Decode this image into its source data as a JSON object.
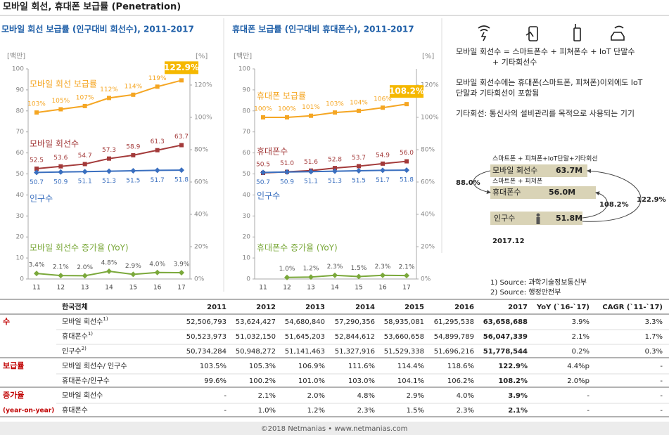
{
  "title": "모바일 회선, 휴대폰 보급률 (Penetration)",
  "chart_data": [
    {
      "type": "line",
      "title": "모바일 회선 보급률 (인구대비 회선수), 2011-2017",
      "ylabel": "[백만]",
      "y2label": "[%]",
      "categories": [
        "11",
        "12",
        "13",
        "14",
        "15",
        "16",
        "17"
      ],
      "ylim": [
        0,
        100
      ],
      "yticks": [
        0,
        10,
        20,
        30,
        40,
        50,
        60,
        70,
        80,
        90,
        100
      ],
      "y2lim": [
        0,
        130
      ],
      "y2ticks": [
        {
          "value": 0,
          "label": "0%"
        },
        {
          "value": 20,
          "label": "20%"
        },
        {
          "value": 40,
          "label": "40%"
        },
        {
          "value": 60,
          "label": "60%"
        },
        {
          "value": 80,
          "label": "80%"
        },
        {
          "value": 100,
          "label": "100%"
        },
        {
          "value": 120,
          "label": "120%"
        }
      ],
      "series": [
        {
          "name": "모바일 회선 보급률",
          "color": "#f5a623",
          "axis": "y2",
          "values": [
            103,
            105,
            107,
            112,
            114,
            119,
            122.9
          ],
          "value_labels": [
            "103%",
            "105%",
            "107%",
            "112%",
            "114%",
            "119%",
            "122.9%"
          ]
        },
        {
          "name": "모바일 회선수",
          "color": "#a33a3a",
          "axis": "y",
          "values": [
            52.5,
            53.6,
            54.7,
            57.3,
            58.9,
            61.3,
            63.7
          ]
        },
        {
          "name": "인구수",
          "color": "#3a6fbf",
          "axis": "y",
          "values": [
            50.7,
            50.9,
            51.1,
            51.3,
            51.5,
            51.7,
            51.8
          ]
        },
        {
          "name": "모바일 회선수 증가율 (YoY)",
          "color": "#7aa83a",
          "axis": "y2",
          "values": [
            3.4,
            2.1,
            2.0,
            4.8,
            2.9,
            4.0,
            3.9
          ],
          "value_labels": [
            "3.4%",
            "2.1%",
            "2.0%",
            "4.8%",
            "2.9%",
            "4.0%",
            "3.9%"
          ]
        }
      ]
    },
    {
      "type": "line",
      "title": "휴대폰 보급률 (인구대비 휴대폰수), 2011-2017",
      "ylabel": "[백만]",
      "y2label": "[%]",
      "categories": [
        "11",
        "12",
        "13",
        "14",
        "15",
        "16",
        "17"
      ],
      "ylim": [
        0,
        100
      ],
      "yticks": [
        0,
        10,
        20,
        30,
        40,
        50,
        60,
        70,
        80,
        90,
        100
      ],
      "y2lim": [
        0,
        130
      ],
      "y2ticks": [
        {
          "value": 0,
          "label": "0%"
        },
        {
          "value": 20,
          "label": "20%"
        },
        {
          "value": 40,
          "label": "40%"
        },
        {
          "value": 60,
          "label": "60%"
        },
        {
          "value": 80,
          "label": "80%"
        },
        {
          "value": 100,
          "label": "100%"
        },
        {
          "value": 120,
          "label": "120%"
        }
      ],
      "series": [
        {
          "name": "휴대폰 보급률",
          "color": "#f5a623",
          "axis": "y2",
          "values": [
            100,
            100,
            101,
            103,
            104,
            106,
            108.2
          ],
          "value_labels": [
            "100%",
            "100%",
            "101%",
            "103%",
            "104%",
            "106%",
            "108.2%"
          ]
        },
        {
          "name": "휴대폰수",
          "color": "#a33a3a",
          "axis": "y",
          "values": [
            50.5,
            51.0,
            51.6,
            52.8,
            53.7,
            54.9,
            56.0
          ],
          "value_labels": [
            "50.5",
            "51.0",
            "51.6",
            "52.8",
            "53.7",
            "54.9",
            "56.0"
          ]
        },
        {
          "name": "인구수",
          "color": "#3a6fbf",
          "axis": "y",
          "values": [
            50.7,
            50.9,
            51.1,
            51.3,
            51.5,
            51.7,
            51.8
          ]
        },
        {
          "name": "휴대폰수 증가율 (YoY)",
          "color": "#7aa83a",
          "axis": "y2",
          "values": [
            null,
            1.0,
            1.2,
            2.3,
            1.5,
            2.3,
            2.1
          ],
          "value_labels": [
            null,
            "1.0%",
            "1.2%",
            "2.3%",
            "1.5%",
            "2.3%",
            "2.1%"
          ]
        }
      ]
    }
  ],
  "notes": [
    "모바일 회선수 = 스마트폰수 + 피쳐폰수 + IoT 단말수",
    "+ 기타회선수",
    "모바일 회선수에는 휴대폰(스마트폰, 피쳐폰)이외에도 IoT",
    "단말과 기타회선이 포함됨",
    "기타회선: 통신사의 설비관리를 목적으로 사용되는 기기"
  ],
  "diagram": {
    "mobile_caption": "스마트폰 + 피쳐폰+IoT단말+기타회선",
    "phone_caption": "스마트폰 + 피쳐폰",
    "boxes": [
      {
        "label": "모바일 회선수",
        "value": "63.7M"
      },
      {
        "label": "휴대폰수",
        "value": "56.0M"
      },
      {
        "label": "인구수",
        "value": "51.8M"
      }
    ],
    "ratios": [
      "88.0%",
      "108.2%",
      "122.9%"
    ],
    "date": "2017.12"
  },
  "sources": [
    "1) Source: 과학기술정보통신부",
    "2) Source: 행정안전부"
  ],
  "table": {
    "header": [
      "한국전체",
      "2011",
      "2012",
      "2013",
      "2014",
      "2015",
      "2016",
      "2017",
      "YoY (`16-`17)",
      "CAGR (`11-`17)"
    ],
    "groups": [
      {
        "label": "수",
        "rows": [
          {
            "label": "모바일 회선수",
            "note": "1)",
            "cells": [
              "52,506,793",
              "53,624,427",
              "54,680,840",
              "57,290,356",
              "58,935,081",
              "61,295,538",
              "63,658,688",
              "3.9%",
              "3.3%"
            ]
          },
          {
            "label": "휴대폰수",
            "note": "1)",
            "cells": [
              "50,523,973",
              "51,032,150",
              "51,645,203",
              "52,844,612",
              "53,660,658",
              "54,899,789",
              "56,047,339",
              "2.1%",
              "1.7%"
            ]
          },
          {
            "label": "인구수",
            "note": "2)",
            "cells": [
              "50,734,284",
              "50,948,272",
              "51,141,463",
              "51,327,916",
              "51,529,338",
              "51,696,216",
              "51,778,544",
              "0.2%",
              "0.3%"
            ]
          }
        ]
      },
      {
        "label": "보급률",
        "rows": [
          {
            "label": "모바일 회선수/ 인구수",
            "cells": [
              "103.5%",
              "105.3%",
              "106.9%",
              "111.6%",
              "114.4%",
              "118.6%",
              "122.9%",
              "4.4%p",
              "-"
            ]
          },
          {
            "label": "휴대폰수/인구수",
            "cells": [
              "99.6%",
              "100.2%",
              "101.0%",
              "103.0%",
              "104.1%",
              "106.2%",
              "108.2%",
              "2.0%p",
              "-"
            ]
          }
        ]
      },
      {
        "label": "증가율",
        "sublabel": "(year-on-year)",
        "rows": [
          {
            "label": "모바일 회선수",
            "cells": [
              "-",
              "2.1%",
              "2.0%",
              "4.8%",
              "2.9%",
              "4.0%",
              "3.9%",
              "-",
              "-"
            ]
          },
          {
            "label": "휴대폰수",
            "cells": [
              "-",
              "1.0%",
              "1.2%",
              "2.3%",
              "1.5%",
              "2.3%",
              "2.1%",
              "-",
              "-"
            ]
          }
        ]
      }
    ]
  },
  "footer": "©2018 Netmanias • www.netmanias.com"
}
